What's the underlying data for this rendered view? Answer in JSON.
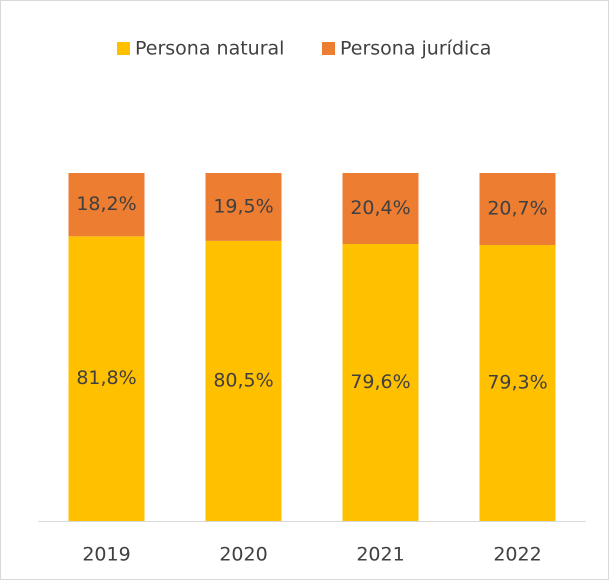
{
  "chart_data": {
    "type": "stacked_bar",
    "categories": [
      "2019",
      "2020",
      "2021",
      "2022"
    ],
    "series": [
      {
        "name": "Persona natural",
        "color": "#ffc000",
        "values": [
          81.8,
          80.5,
          79.6,
          79.3
        ],
        "value_labels": [
          "81,8%",
          "80,5%",
          "79,6%",
          "79,3%"
        ]
      },
      {
        "name": "Persona jurídica",
        "color": "#ed7d31",
        "values": [
          18.2,
          19.5,
          20.4,
          20.7
        ],
        "value_labels": [
          "18,2%",
          "19,5%",
          "20,4%",
          "20,7%"
        ]
      }
    ],
    "legend": "top"
  }
}
